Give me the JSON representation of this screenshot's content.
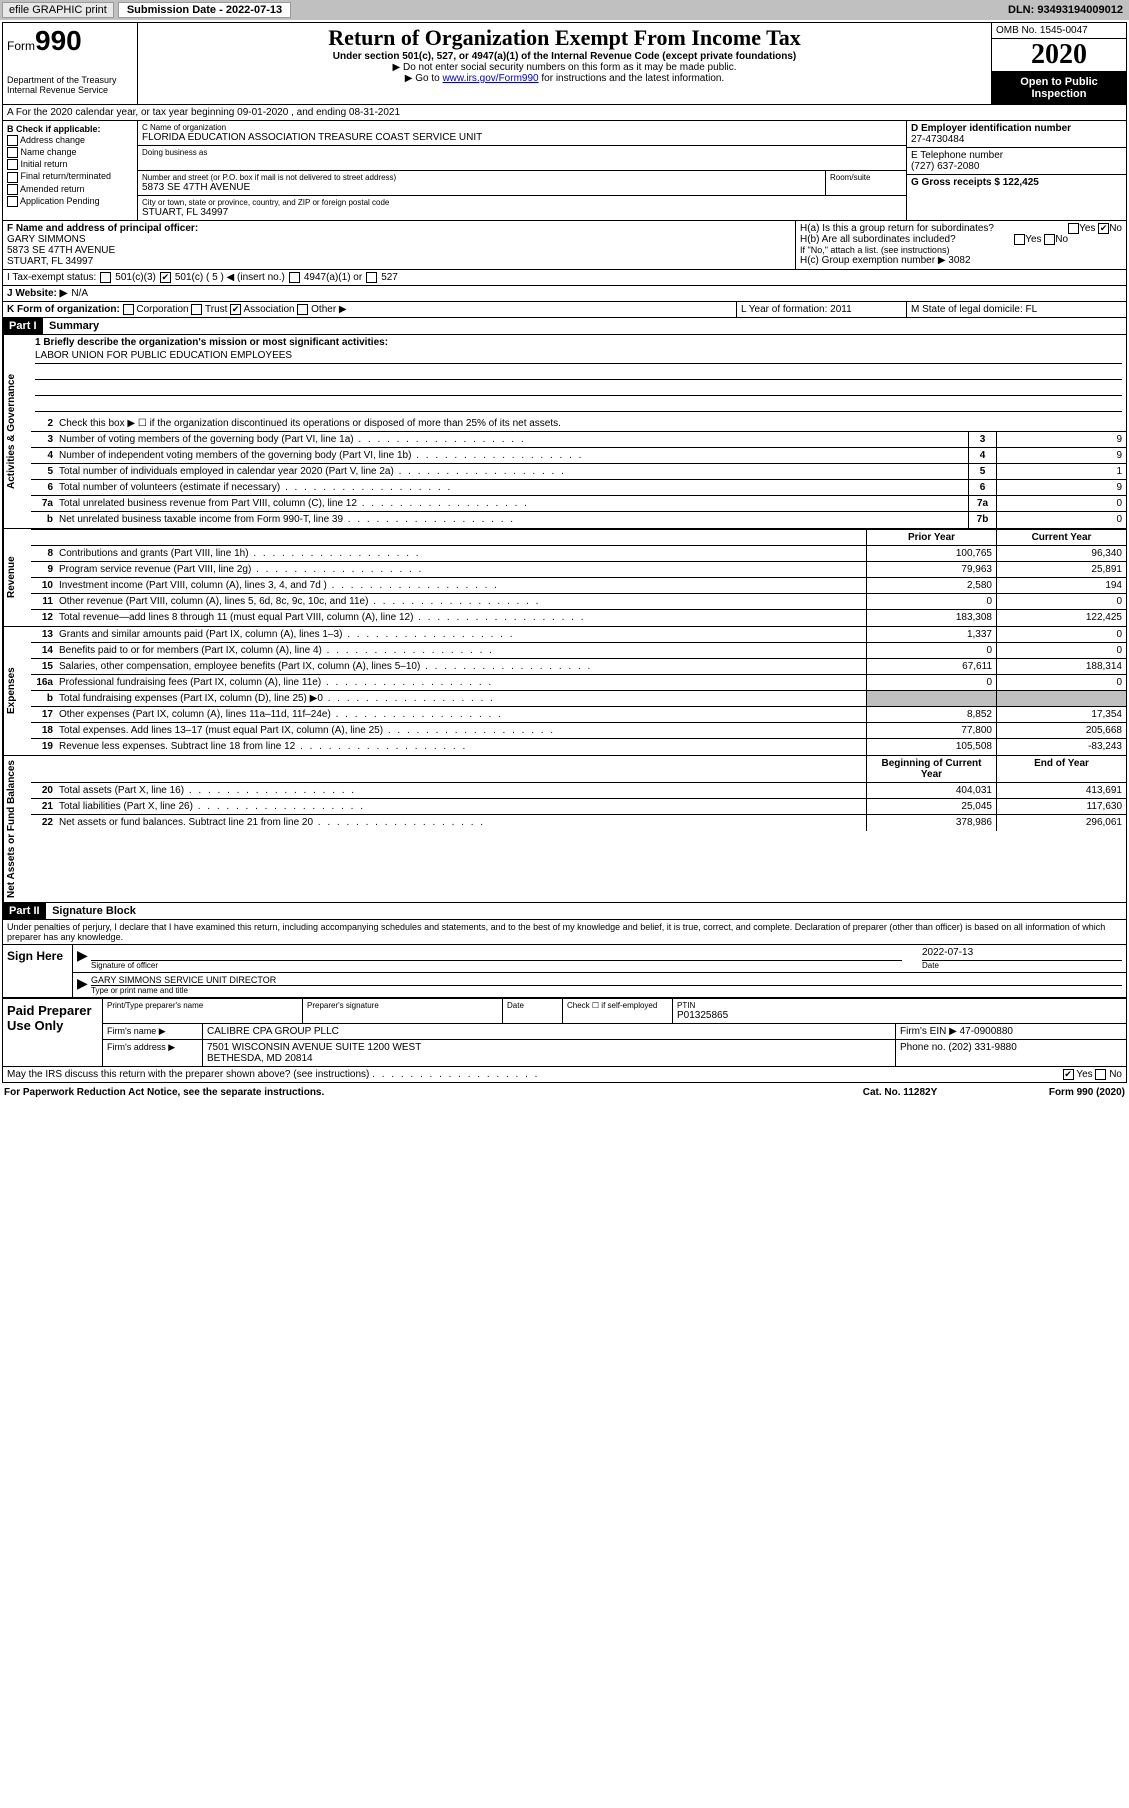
{
  "toolbar": {
    "efile_label": "efile GRAPHIC print",
    "sub_date_label": "Submission Date - 2022-07-13",
    "dln": "DLN: 93493194009012"
  },
  "header": {
    "form_word": "Form",
    "form_num": "990",
    "title": "Return of Organization Exempt From Income Tax",
    "subtitle": "Under section 501(c), 527, or 4947(a)(1) of the Internal Revenue Code (except private foundations)",
    "arrow1": "▶ Do not enter social security numbers on this form as it may be made public.",
    "arrow2_pre": "▶ Go to ",
    "arrow2_link": "www.irs.gov/Form990",
    "arrow2_post": " for instructions and the latest information.",
    "dept1": "Department of the Treasury",
    "dept2": "Internal Revenue Service",
    "omb": "OMB No. 1545-0047",
    "year": "2020",
    "open": "Open to Public Inspection"
  },
  "line_a": "A   For the 2020 calendar year, or tax year beginning 09-01-2020    , and ending 08-31-2021",
  "sec_b": {
    "b_label": "B Check if applicable:",
    "addr_change": "Address change",
    "name_change": "Name change",
    "initial": "Initial return",
    "final": "Final return/terminated",
    "amended": "Amended return",
    "app_pending": "Application Pending",
    "c_label": "C Name of organization",
    "c_val": "FLORIDA EDUCATION ASSOCIATION TREASURE COAST SERVICE UNIT",
    "dba_label": "Doing business as",
    "street_label": "Number and street (or P.O. box if mail is not delivered to street address)",
    "street_val": "5873 SE 47TH AVENUE",
    "room_label": "Room/suite",
    "city_label": "City or town, state or province, country, and ZIP or foreign postal code",
    "city_val": "STUART, FL  34997",
    "d_label": "D Employer identification number",
    "d_val": "27-4730484",
    "e_label": "E Telephone number",
    "e_val": "(727) 637-2080",
    "g_label": "G Gross receipts $ 122,425"
  },
  "fgh": {
    "f_label": "F Name and address of principal officer:",
    "f_name": "GARY SIMMONS",
    "f_addr1": "5873 SE 47TH AVENUE",
    "f_addr2": "STUART, FL  34997",
    "ha": "H(a)  Is this a group return for subordinates?",
    "hb": "H(b)  Are all subordinates included?",
    "hb_note": "If \"No,\" attach a list. (see instructions)",
    "hc": "H(c)  Group exemption number ▶  3082",
    "yes": "Yes",
    "no": "No"
  },
  "line_i": {
    "label": "I   Tax-exempt status:",
    "o1": "501(c)(3)",
    "o2": "501(c) ( 5 ) ◀ (insert no.)",
    "o3": "4947(a)(1) or",
    "o4": "527"
  },
  "line_j": {
    "label": "J   Website: ▶",
    "val": "N/A"
  },
  "line_k": {
    "label": "K Form of organization:",
    "corp": "Corporation",
    "trust": "Trust",
    "assoc": "Association",
    "other": "Other ▶",
    "l_label": "L Year of formation: 2011",
    "m_label": "M State of legal domicile: FL"
  },
  "part1": {
    "hdr": "Part I",
    "title": "Summary",
    "q1_label": "1  Briefly describe the organization's mission or most significant activities:",
    "q1_val": "LABOR UNION FOR PUBLIC EDUCATION EMPLOYEES",
    "q2": "Check this box ▶ ☐  if the organization discontinued its operations or disposed of more than 25% of its net assets.",
    "vtab_gov": "Activities & Governance",
    "vtab_rev": "Revenue",
    "vtab_exp": "Expenses",
    "vtab_net": "Net Assets or Fund Balances",
    "col_prior": "Prior Year",
    "col_curr": "Current Year",
    "col_beg": "Beginning of Current Year",
    "col_end": "End of Year",
    "rows_gov": [
      {
        "n": "3",
        "t": "Number of voting members of the governing body (Part VI, line 1a)",
        "b": "3",
        "v": "9"
      },
      {
        "n": "4",
        "t": "Number of independent voting members of the governing body (Part VI, line 1b)",
        "b": "4",
        "v": "9"
      },
      {
        "n": "5",
        "t": "Total number of individuals employed in calendar year 2020 (Part V, line 2a)",
        "b": "5",
        "v": "1"
      },
      {
        "n": "6",
        "t": "Total number of volunteers (estimate if necessary)",
        "b": "6",
        "v": "9"
      },
      {
        "n": "7a",
        "t": "Total unrelated business revenue from Part VIII, column (C), line 12",
        "b": "7a",
        "v": "0"
      },
      {
        "n": "b",
        "t": "Net unrelated business taxable income from Form 990-T, line 39",
        "b": "7b",
        "v": "0"
      }
    ],
    "rows_rev": [
      {
        "n": "8",
        "t": "Contributions and grants (Part VIII, line 1h)",
        "p": "100,765",
        "c": "96,340"
      },
      {
        "n": "9",
        "t": "Program service revenue (Part VIII, line 2g)",
        "p": "79,963",
        "c": "25,891"
      },
      {
        "n": "10",
        "t": "Investment income (Part VIII, column (A), lines 3, 4, and 7d )",
        "p": "2,580",
        "c": "194"
      },
      {
        "n": "11",
        "t": "Other revenue (Part VIII, column (A), lines 5, 6d, 8c, 9c, 10c, and 11e)",
        "p": "0",
        "c": "0"
      },
      {
        "n": "12",
        "t": "Total revenue—add lines 8 through 11 (must equal Part VIII, column (A), line 12)",
        "p": "183,308",
        "c": "122,425"
      }
    ],
    "rows_exp": [
      {
        "n": "13",
        "t": "Grants and similar amounts paid (Part IX, column (A), lines 1–3)",
        "p": "1,337",
        "c": "0"
      },
      {
        "n": "14",
        "t": "Benefits paid to or for members (Part IX, column (A), line 4)",
        "p": "0",
        "c": "0"
      },
      {
        "n": "15",
        "t": "Salaries, other compensation, employee benefits (Part IX, column (A), lines 5–10)",
        "p": "67,611",
        "c": "188,314"
      },
      {
        "n": "16a",
        "t": "Professional fundraising fees (Part IX, column (A), line 11e)",
        "p": "0",
        "c": "0"
      },
      {
        "n": "b",
        "t": "Total fundraising expenses (Part IX, column (D), line 25) ▶0",
        "p": "",
        "c": "",
        "gray": true
      },
      {
        "n": "17",
        "t": "Other expenses (Part IX, column (A), lines 11a–11d, 11f–24e)",
        "p": "8,852",
        "c": "17,354"
      },
      {
        "n": "18",
        "t": "Total expenses. Add lines 13–17 (must equal Part IX, column (A), line 25)",
        "p": "77,800",
        "c": "205,668"
      },
      {
        "n": "19",
        "t": "Revenue less expenses. Subtract line 18 from line 12",
        "p": "105,508",
        "c": "-83,243"
      }
    ],
    "rows_net": [
      {
        "n": "20",
        "t": "Total assets (Part X, line 16)",
        "p": "404,031",
        "c": "413,691"
      },
      {
        "n": "21",
        "t": "Total liabilities (Part X, line 26)",
        "p": "25,045",
        "c": "117,630"
      },
      {
        "n": "22",
        "t": "Net assets or fund balances. Subtract line 21 from line 20",
        "p": "378,986",
        "c": "296,061"
      }
    ]
  },
  "part2": {
    "hdr": "Part II",
    "title": "Signature Block",
    "decl": "Under penalties of perjury, I declare that I have examined this return, including accompanying schedules and statements, and to the best of my knowledge and belief, it is true, correct, and complete. Declaration of preparer (other than officer) is based on all information of which preparer has any knowledge.",
    "sign_here": "Sign Here",
    "sig_officer": "Signature of officer",
    "sig_date_val": "2022-07-13",
    "sig_date": "Date",
    "sig_name": "GARY SIMMONS  SERVICE UNIT DIRECTOR",
    "sig_name_lbl": "Type or print name and title",
    "paid_prep": "Paid Preparer Use Only",
    "col_print": "Print/Type preparer's name",
    "col_sig": "Preparer's signature",
    "col_date": "Date",
    "col_check": "Check ☐ if self-employed",
    "col_ptin": "PTIN",
    "ptin_val": "P01325865",
    "firm_name_lbl": "Firm's name   ▶",
    "firm_name": "CALIBRE CPA GROUP PLLC",
    "firm_ein_lbl": "Firm's EIN ▶ 47-0900880",
    "firm_addr_lbl": "Firm's address ▶",
    "firm_addr": "7501 WISCONSIN AVENUE SUITE 1200 WEST",
    "firm_addr2": "BETHESDA, MD  20814",
    "phone_lbl": "Phone no. (202) 331-9880",
    "discuss": "May the IRS discuss this return with the preparer shown above? (see instructions)",
    "discuss_yes": "Yes",
    "discuss_no": "No"
  },
  "footer": {
    "pra": "For Paperwork Reduction Act Notice, see the separate instructions.",
    "cat": "Cat. No. 11282Y",
    "form": "Form 990 (2020)"
  }
}
